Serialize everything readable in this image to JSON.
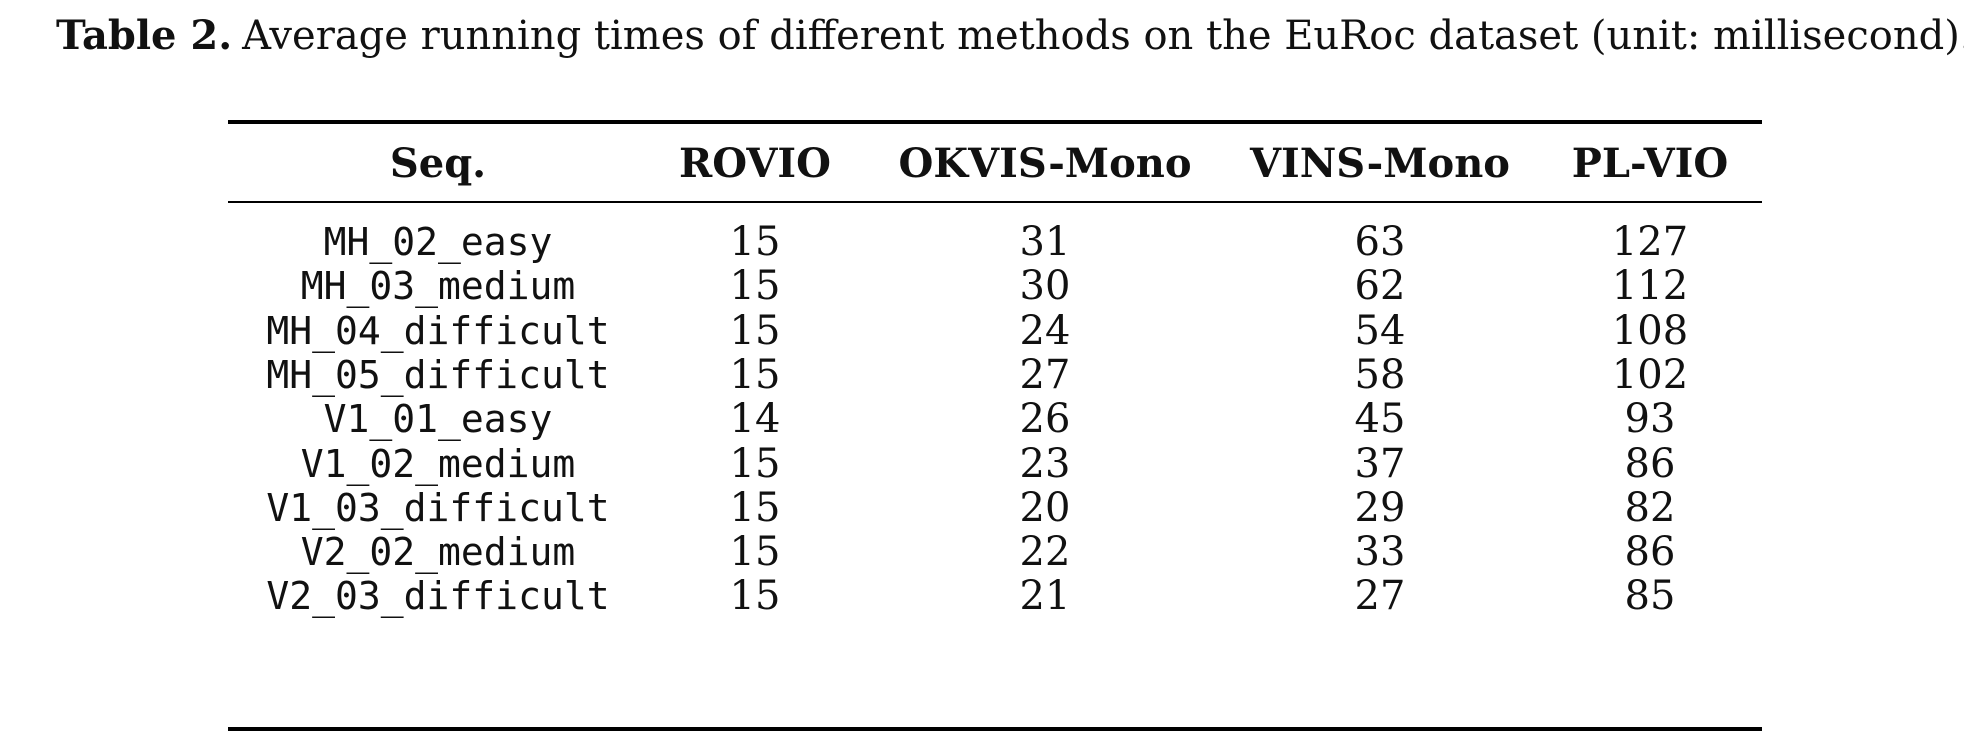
{
  "caption": {
    "label": "Table 2.",
    "text": "Average running times of different methods on the EuRoc dataset (unit: millisecond)."
  },
  "table": {
    "headers": [
      "Seq.",
      "ROVIO",
      "OKVIS-Mono",
      "VINS-Mono",
      "PL-VIO"
    ],
    "rows": [
      [
        "MH_02_easy",
        "15",
        "31",
        "63",
        "127"
      ],
      [
        "MH_03_medium",
        "15",
        "30",
        "62",
        "112"
      ],
      [
        "MH_04_difficult",
        "15",
        "24",
        "54",
        "108"
      ],
      [
        "MH_05_difficult",
        "15",
        "27",
        "58",
        "102"
      ],
      [
        "V1_01_easy",
        "14",
        "26",
        "45",
        "93"
      ],
      [
        "V1_02_medium",
        "15",
        "23",
        "37",
        "86"
      ],
      [
        "V1_03_difficult",
        "15",
        "20",
        "29",
        "82"
      ],
      [
        "V2_02_medium",
        "15",
        "22",
        "33",
        "86"
      ],
      [
        "V2_03_difficult",
        "15",
        "21",
        "27",
        "85"
      ]
    ]
  }
}
